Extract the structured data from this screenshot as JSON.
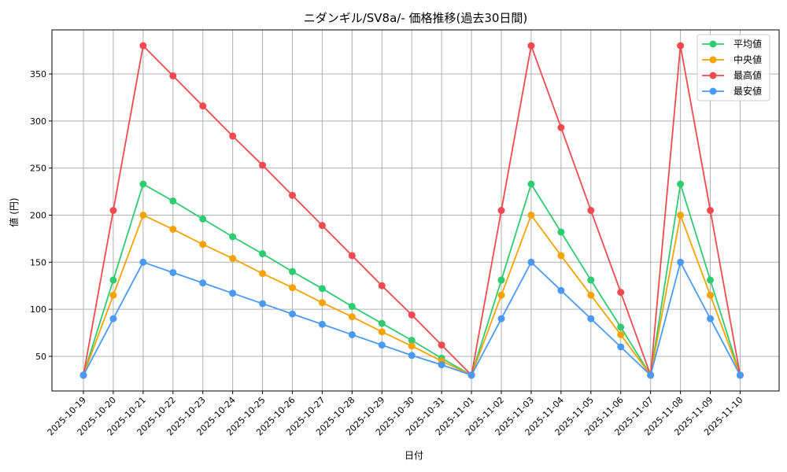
{
  "chart_data": {
    "type": "line",
    "title": "ニダンギル/SV8a/- 価格推移(過去30日間)",
    "xlabel": "日付",
    "ylabel": "値 (円)",
    "ylim": [
      13.2,
      396.8
    ],
    "yticks": [
      50,
      100,
      150,
      200,
      250,
      300,
      350
    ],
    "grid": true,
    "legend_position": "upper right",
    "categories": [
      "2025-10-19",
      "2025-10-20",
      "2025-10-21",
      "2025-10-22",
      "2025-10-23",
      "2025-10-24",
      "2025-10-25",
      "2025-10-26",
      "2025-10-27",
      "2025-10-28",
      "2025-10-29",
      "2025-10-30",
      "2025-10-31",
      "2025-11-01",
      "2025-11-02",
      "2025-11-03",
      "2025-11-04",
      "2025-11-05",
      "2025-11-06",
      "2025-11-07",
      "2025-11-08",
      "2025-11-09",
      "2025-11-10"
    ],
    "series": [
      {
        "name": "平均値",
        "color": "#2ecc71",
        "values": [
          30,
          131,
          233,
          215,
          196,
          177,
          159,
          140,
          122,
          103,
          85,
          67,
          48,
          30,
          131,
          233,
          182,
          131,
          81,
          30,
          233,
          131,
          30
        ]
      },
      {
        "name": "中央値",
        "color": "#f5a300",
        "values": [
          30,
          115,
          200,
          185,
          169,
          154,
          138,
          123,
          107,
          92,
          76,
          61,
          45,
          30,
          115,
          200,
          157,
          115,
          73,
          30,
          200,
          115,
          30
        ]
      },
      {
        "name": "最高値",
        "color": "#f04a4f",
        "values": [
          30,
          205,
          380,
          348,
          316,
          284,
          253,
          221,
          189,
          157,
          125,
          94,
          62,
          30,
          205,
          380,
          293,
          205,
          118,
          30,
          380,
          205,
          30
        ]
      },
      {
        "name": "最安値",
        "color": "#4a9af5",
        "values": [
          30,
          90,
          150,
          139,
          128,
          117,
          106,
          95,
          84,
          73,
          62,
          51,
          41,
          30,
          90,
          150,
          120,
          90,
          60,
          30,
          150,
          90,
          30
        ]
      }
    ]
  }
}
